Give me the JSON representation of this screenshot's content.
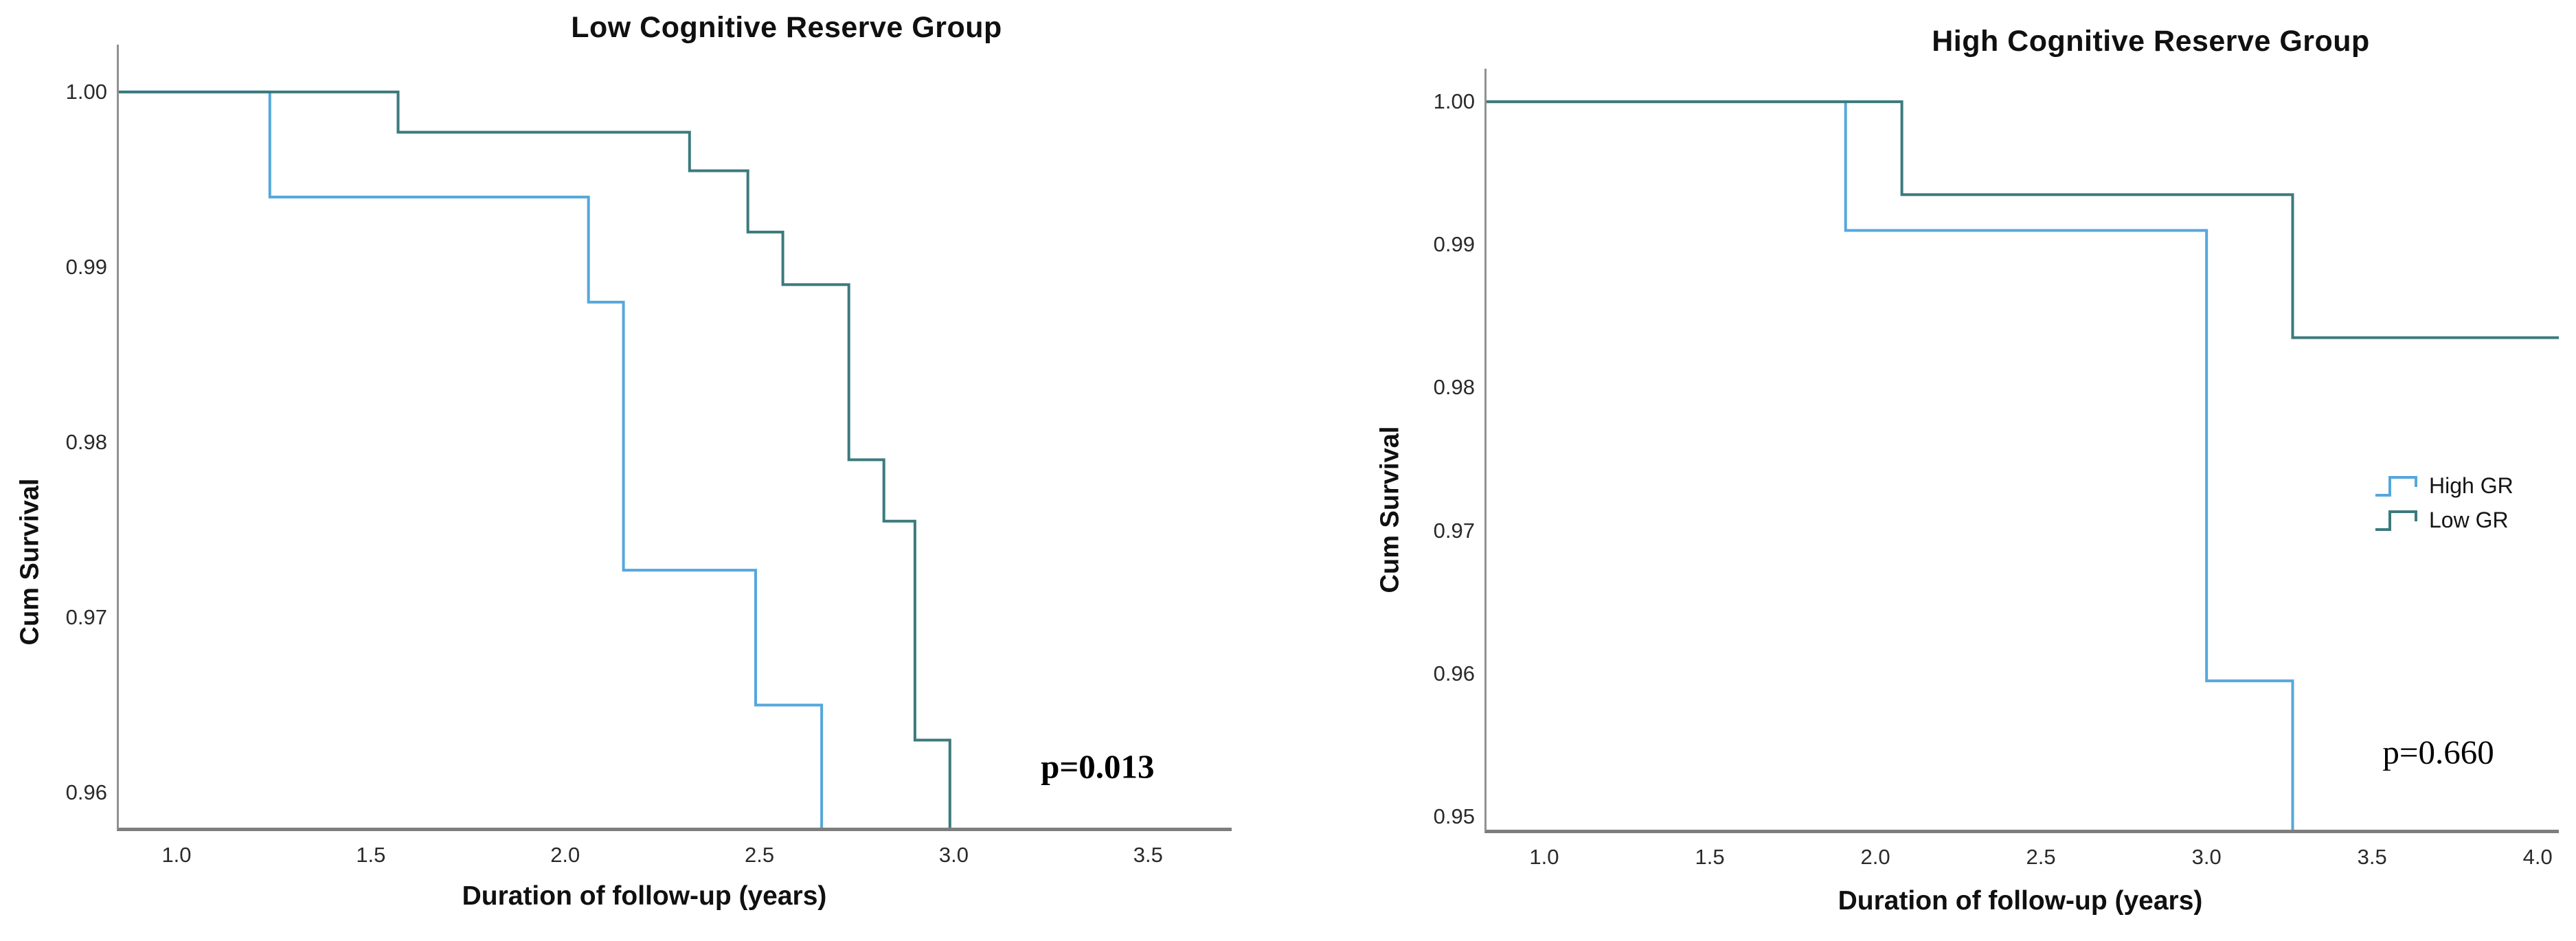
{
  "figure": {
    "background": "#ffffff"
  },
  "colors": {
    "high_gr": "#56A7DC",
    "low_gr": "#3B7A7D",
    "axis": "#8a8a8a"
  },
  "chart_data": [
    {
      "type": "line",
      "subtype": "kaplan-meier-step",
      "title": "Low Cognitive Reserve Group",
      "xlabel": "Duration of follow-up (years)",
      "ylabel": "Cum Survival",
      "p_value": {
        "label": "p=0.013",
        "x": 3.37,
        "y": 0.9615,
        "bold": true
      },
      "xlim": [
        0.8515,
        3.715
      ],
      "ylim": [
        0.958,
        1.0027
      ],
      "grid": false,
      "x_ticks": [
        {
          "v": 1.0,
          "label": "1.0"
        },
        {
          "v": 1.5,
          "label": "1.5"
        },
        {
          "v": 2.0,
          "label": "2.0"
        },
        {
          "v": 2.5,
          "label": "2.5"
        },
        {
          "v": 3.0,
          "label": "3.0"
        },
        {
          "v": 3.5,
          "label": "3.5"
        }
      ],
      "y_ticks": [
        {
          "v": 0.96,
          "label": "0.96"
        },
        {
          "v": 0.97,
          "label": "0.97"
        },
        {
          "v": 0.98,
          "label": "0.98"
        },
        {
          "v": 0.99,
          "label": "0.99"
        },
        {
          "v": 1.0,
          "label": "1.00"
        }
      ],
      "series": [
        {
          "name": "High GR",
          "color": "#56A7DC",
          "points": [
            [
              0.8515,
              1.0
            ],
            [
              1.24,
              1.0
            ],
            [
              1.24,
              0.994
            ],
            [
              2.06,
              0.994
            ],
            [
              2.06,
              0.988
            ],
            [
              2.15,
              0.988
            ],
            [
              2.15,
              0.9727
            ],
            [
              2.49,
              0.9727
            ],
            [
              2.49,
              0.965
            ],
            [
              2.66,
              0.965
            ],
            [
              2.66,
              0.958
            ]
          ]
        },
        {
          "name": "Low GR",
          "color": "#3B7A7D",
          "points": [
            [
              0.8515,
              1.0
            ],
            [
              1.57,
              1.0
            ],
            [
              1.57,
              0.9977
            ],
            [
              2.32,
              0.9977
            ],
            [
              2.32,
              0.9955
            ],
            [
              2.47,
              0.9955
            ],
            [
              2.47,
              0.992
            ],
            [
              2.56,
              0.992
            ],
            [
              2.56,
              0.989
            ],
            [
              2.73,
              0.989
            ],
            [
              2.73,
              0.979
            ],
            [
              2.82,
              0.979
            ],
            [
              2.82,
              0.9755
            ],
            [
              2.9,
              0.9755
            ],
            [
              2.9,
              0.963
            ],
            [
              2.99,
              0.963
            ],
            [
              2.99,
              0.958
            ]
          ]
        }
      ]
    },
    {
      "type": "line",
      "subtype": "kaplan-meier-step",
      "title": "High Cognitive Reserve Group",
      "xlabel": "Duration of follow-up (years)",
      "ylabel": "Cum Survival",
      "p_value": {
        "label": "p=0.660",
        "x": 3.7,
        "y": 0.9545,
        "bold": false
      },
      "xlim": [
        0.8258,
        4.0638
      ],
      "ylim": [
        0.94909,
        1.00231
      ],
      "grid": false,
      "x_ticks": [
        {
          "v": 1.0,
          "label": "1.0"
        },
        {
          "v": 1.5,
          "label": "1.5"
        },
        {
          "v": 2.0,
          "label": "2.0"
        },
        {
          "v": 2.5,
          "label": "2.5"
        },
        {
          "v": 3.0,
          "label": "3.0"
        },
        {
          "v": 3.5,
          "label": "3.5"
        },
        {
          "v": 4.0,
          "label": "4.0"
        }
      ],
      "y_ticks": [
        {
          "v": 0.95,
          "label": "0.95"
        },
        {
          "v": 0.96,
          "label": "0.96"
        },
        {
          "v": 0.97,
          "label": "0.97"
        },
        {
          "v": 0.98,
          "label": "0.98"
        },
        {
          "v": 0.99,
          "label": "0.99"
        },
        {
          "v": 1.0,
          "label": "1.00"
        }
      ],
      "series": [
        {
          "name": "High GR",
          "color": "#56A7DC",
          "points": [
            [
              0.8258,
              1.0
            ],
            [
              1.91,
              1.0
            ],
            [
              1.91,
              0.991
            ],
            [
              3.0,
              0.991
            ],
            [
              3.0,
              0.9595
            ],
            [
              3.26,
              0.9595
            ],
            [
              3.26,
              0.94909
            ]
          ]
        },
        {
          "name": "Low GR",
          "color": "#3B7A7D",
          "points": [
            [
              0.8258,
              1.0
            ],
            [
              2.08,
              1.0
            ],
            [
              2.08,
              0.9935
            ],
            [
              3.26,
              0.9935
            ],
            [
              3.26,
              0.9835
            ],
            [
              4.0638,
              0.9835
            ]
          ]
        }
      ],
      "legend": {
        "position": "right-middle",
        "items": [
          {
            "label": "High GR"
          },
          {
            "label": "Low GR"
          }
        ]
      }
    }
  ]
}
